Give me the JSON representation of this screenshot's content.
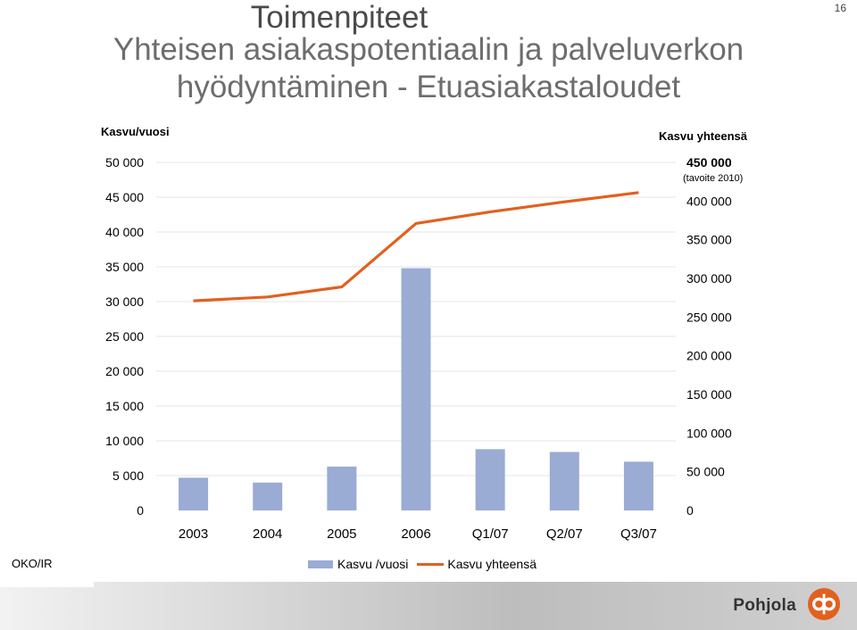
{
  "header": {
    "title_line1": "Toimenpiteet",
    "title_line2": "Yhteisen asiakaspotentiaalin ja palveluverkon",
    "title_line3": "hyödyntäminen - Etuasiakastaloudet",
    "slide_number": "16"
  },
  "chart_data": {
    "type": "bar",
    "categories": [
      "2003",
      "2004",
      "2005",
      "2006",
      "Q1/07",
      "Q2/07",
      "Q3/07"
    ],
    "series": [
      {
        "name": "Kasvu /vuosi",
        "type": "bar",
        "axis": "left",
        "color": "#9aabd4",
        "values": [
          4700,
          4000,
          6300,
          34800,
          8800,
          8400,
          7000
        ]
      },
      {
        "name": "Kasvu yhteensä",
        "type": "line",
        "axis": "right",
        "color": "#e2601f",
        "values": [
          271000,
          276000,
          289000,
          371000,
          386000,
          399000,
          411000
        ]
      }
    ],
    "left_axis": {
      "title": "Kasvu/vuosi",
      "min": 0,
      "max": 50000,
      "ticks": [
        "0",
        "5 000",
        "10 000",
        "15 000",
        "20 000",
        "25 000",
        "30 000",
        "35 000",
        "40 000",
        "45 000",
        "50 000"
      ]
    },
    "right_axis": {
      "title": "Kasvu yhteensä",
      "min": 0,
      "max": 450000,
      "ticks": [
        "0",
        "50 000",
        "100 000",
        "150 000",
        "200 000",
        "250 000",
        "300 000",
        "350 000",
        "400 000",
        "450 000"
      ],
      "top_note": "(tavoite 2010)"
    },
    "grid": true,
    "legend": "bottom"
  },
  "footer": {
    "left_label": "OKO/IR",
    "brand": "Pohjola"
  },
  "colors": {
    "bar": "#9aabd4",
    "line": "#e2601f",
    "logo": "#e2601f"
  }
}
